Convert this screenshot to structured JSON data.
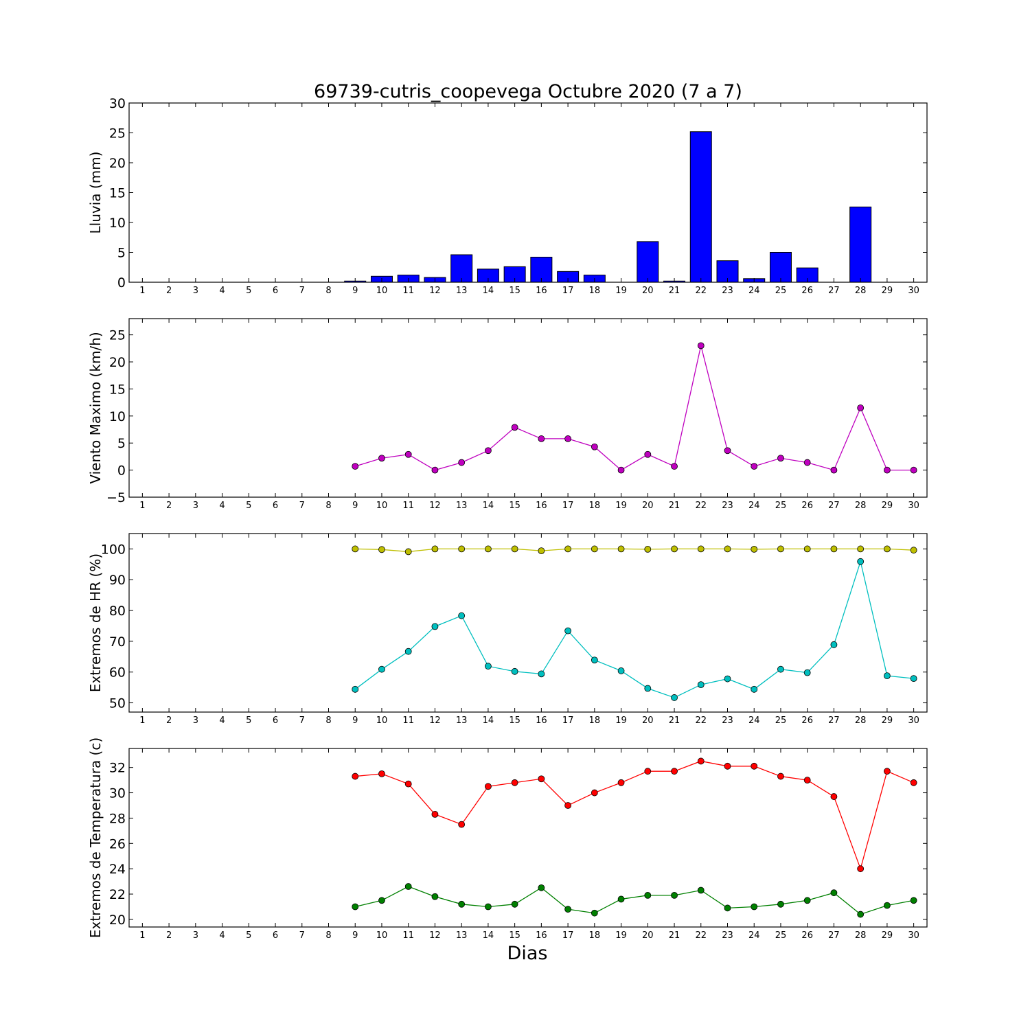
{
  "chart_data": [
    {
      "type": "bar",
      "title": "69739-cutris_coopevega Octubre 2020  (7 a 7)",
      "ylabel": "Lluvia (mm)",
      "xlabel": "",
      "ylim": [
        0,
        30
      ],
      "yticks": [
        0,
        5,
        10,
        15,
        20,
        25,
        30
      ],
      "categories": [
        "1",
        "2",
        "3",
        "4",
        "5",
        "6",
        "7",
        "8",
        "9",
        "10",
        "11",
        "12",
        "13",
        "14",
        "15",
        "16",
        "17",
        "18",
        "19",
        "20",
        "21",
        "22",
        "23",
        "24",
        "25",
        "26",
        "27",
        "28",
        "29",
        "30"
      ],
      "values": [
        null,
        null,
        null,
        null,
        null,
        null,
        null,
        null,
        0.2,
        1.0,
        1.2,
        0.8,
        4.6,
        2.2,
        2.6,
        4.2,
        1.8,
        1.2,
        0.0,
        6.8,
        0.2,
        25.2,
        3.6,
        0.6,
        5.0,
        2.4,
        0.0,
        12.6,
        0.0,
        0.0
      ],
      "color": "#0000ff"
    },
    {
      "type": "line",
      "ylabel": "Viento Maximo (km/h)",
      "xlabel": "",
      "ylim": [
        -5,
        28
      ],
      "yticks": [
        -5,
        0,
        5,
        10,
        15,
        20,
        25
      ],
      "x": [
        "1",
        "2",
        "3",
        "4",
        "5",
        "6",
        "7",
        "8",
        "9",
        "10",
        "11",
        "12",
        "13",
        "14",
        "15",
        "16",
        "17",
        "18",
        "19",
        "20",
        "21",
        "22",
        "23",
        "24",
        "25",
        "26",
        "27",
        "28",
        "29",
        "30"
      ],
      "series": [
        {
          "values": [
            null,
            null,
            null,
            null,
            null,
            null,
            null,
            null,
            0.7,
            2.2,
            2.9,
            0.0,
            1.4,
            3.6,
            7.9,
            5.8,
            5.8,
            4.3,
            0.0,
            2.9,
            0.7,
            23.0,
            3.6,
            0.7,
            2.2,
            1.4,
            0.0,
            11.5,
            0.0,
            0.0
          ],
          "color": "#bf00bf"
        }
      ]
    },
    {
      "type": "line",
      "ylabel": "Extremos de HR (%)",
      "xlabel": "",
      "ylim": [
        47,
        105
      ],
      "yticks": [
        50,
        60,
        70,
        80,
        90,
        100
      ],
      "x": [
        "1",
        "2",
        "3",
        "4",
        "5",
        "6",
        "7",
        "8",
        "9",
        "10",
        "11",
        "12",
        "13",
        "14",
        "15",
        "16",
        "17",
        "18",
        "19",
        "20",
        "21",
        "22",
        "23",
        "24",
        "25",
        "26",
        "27",
        "28",
        "29",
        "30"
      ],
      "series": [
        {
          "values": [
            null,
            null,
            null,
            null,
            null,
            null,
            null,
            null,
            100,
            99.8,
            99.1,
            100,
            100,
            100,
            100,
            99.4,
            100,
            100,
            100,
            99.9,
            100,
            100,
            100,
            99.9,
            100,
            100,
            100,
            100,
            100,
            99.6
          ],
          "color": "#bfbf00"
        },
        {
          "values": [
            null,
            null,
            null,
            null,
            null,
            null,
            null,
            null,
            54.4,
            60.9,
            66.7,
            74.8,
            78.3,
            61.9,
            60.2,
            59.4,
            73.4,
            63.9,
            60.4,
            54.7,
            51.7,
            55.9,
            57.8,
            54.4,
            60.9,
            59.8,
            68.9,
            95.9,
            58.8,
            57.9
          ],
          "color": "#00bfbf"
        }
      ]
    },
    {
      "type": "line",
      "ylabel": "Extremos de Temperatura (c)",
      "xlabel": "Dias",
      "ylim": [
        19.4,
        33.5
      ],
      "yticks": [
        20,
        22,
        24,
        26,
        28,
        30,
        32
      ],
      "x": [
        "1",
        "2",
        "3",
        "4",
        "5",
        "6",
        "7",
        "8",
        "9",
        "10",
        "11",
        "12",
        "13",
        "14",
        "15",
        "16",
        "17",
        "18",
        "19",
        "20",
        "21",
        "22",
        "23",
        "24",
        "25",
        "26",
        "27",
        "28",
        "29",
        "30"
      ],
      "series": [
        {
          "values": [
            null,
            null,
            null,
            null,
            null,
            null,
            null,
            null,
            31.3,
            31.5,
            30.7,
            28.3,
            27.5,
            30.5,
            30.8,
            31.1,
            29.0,
            30.0,
            30.8,
            31.7,
            31.7,
            32.5,
            32.1,
            32.1,
            31.3,
            31.0,
            29.7,
            24.0,
            31.7,
            30.8
          ],
          "color": "#ff0000"
        },
        {
          "values": [
            null,
            null,
            null,
            null,
            null,
            null,
            null,
            null,
            21.0,
            21.5,
            22.6,
            21.8,
            21.2,
            21.0,
            21.2,
            22.5,
            20.8,
            20.5,
            21.6,
            21.9,
            21.9,
            22.3,
            20.9,
            21.0,
            21.2,
            21.5,
            22.1,
            20.4,
            21.1,
            21.5
          ],
          "color": "#008000"
        }
      ]
    }
  ]
}
